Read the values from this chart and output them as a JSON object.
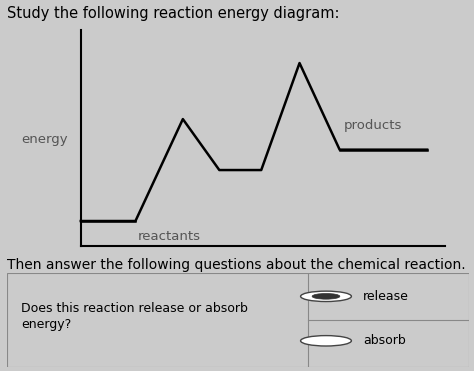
{
  "title": "Study the following reaction energy diagram:",
  "subtitle": "Then answer the following questions about the chemical reaction.",
  "energy_label": "energy",
  "curve_color": "#000000",
  "bg_color": "#cbcbcb",
  "axis_color": "#000000",
  "reactants_label": "reactants",
  "products_label": "products",
  "question_text_line1": "Does this reaction release or absorb",
  "question_text_line2": "energy?",
  "options": [
    "release",
    "absorb"
  ],
  "selected_option": 0,
  "title_fontsize": 10.5,
  "subtitle_fontsize": 10,
  "label_fontsize": 9.5,
  "table_fontsize": 9
}
